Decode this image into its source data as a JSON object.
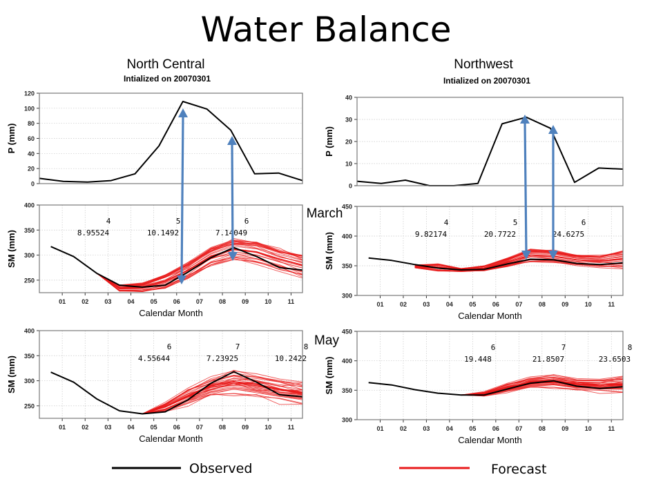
{
  "title": "Water Balance",
  "colors": {
    "observed": "#000000",
    "forecast": "#e8191a",
    "arrow": "#4f81bd",
    "frame": "#777777"
  },
  "left_column": {
    "region": "North Central",
    "init": "Intialized on 20070301"
  },
  "right_column": {
    "region": "Northwest",
    "init": "Intialized on 20070301"
  },
  "row_labels": {
    "march": "March",
    "may": "May"
  },
  "legend": {
    "observed": "Observed",
    "forecast": "Forecast"
  },
  "chart_data": [
    {
      "id": "nc-precip",
      "type": "line",
      "ylabel": "P (mm)",
      "ylim": [
        0,
        120
      ],
      "yticks": [
        0,
        20,
        40,
        60,
        80,
        100,
        120
      ],
      "x": [
        0,
        1,
        2,
        3,
        4,
        5,
        6,
        7,
        8,
        9,
        10,
        11
      ],
      "series": [
        {
          "kind": "observed",
          "values": [
            7,
            3,
            2,
            4,
            13,
            50,
            109,
            99,
            71,
            13,
            14,
            4
          ]
        }
      ]
    },
    {
      "id": "nw-precip",
      "type": "line",
      "ylabel": "P (mm)",
      "ylim": [
        0,
        40
      ],
      "yticks": [
        0,
        10,
        20,
        30,
        40
      ],
      "x": [
        0,
        1,
        2,
        3,
        4,
        5,
        6,
        7,
        8,
        9,
        10,
        11
      ],
      "series": [
        {
          "kind": "observed",
          "values": [
            2,
            1,
            2.5,
            0,
            0,
            1,
            28,
            31,
            26,
            1.5,
            8,
            7.5
          ]
        }
      ]
    },
    {
      "id": "nc-sm-march",
      "type": "line",
      "ylabel": "SM (mm)",
      "xlabel": "Calendar Month",
      "ylim": [
        225,
        400
      ],
      "yticks": [
        250,
        300,
        350,
        400
      ],
      "x_ticklabels": [
        "01",
        "02",
        "03",
        "04",
        "05",
        "06",
        "07",
        "08",
        "09",
        "10",
        "11"
      ],
      "observed": {
        "x": [
          0.5,
          1.5,
          2.5,
          3.5,
          4.5,
          5.5,
          6.5,
          7.5,
          8.5,
          9.5,
          10.5,
          11.5
        ],
        "values": [
          317,
          297,
          264,
          240,
          236,
          240,
          266,
          295,
          315,
          297,
          275,
          270
        ]
      },
      "forecast": {
        "start_x": 2.5,
        "start_value": 264,
        "members": 30,
        "x": [
          2.5,
          3.5,
          4.5,
          5.5,
          6.5,
          7.5,
          8.5,
          9.5,
          10.5,
          11.5
        ],
        "mean": [
          264,
          234,
          236,
          248,
          270,
          298,
          312,
          306,
          292,
          280
        ],
        "spread": [
          0,
          7,
          10,
          16,
          20,
          22,
          24,
          25,
          24,
          24
        ]
      },
      "annotations": [
        {
          "month": "4",
          "value": "8.95524"
        },
        {
          "month": "5",
          "value": "10.1492"
        },
        {
          "month": "6",
          "value": "7.14049"
        }
      ]
    },
    {
      "id": "nw-sm-march",
      "type": "line",
      "ylabel": "SM (mm)",
      "xlabel": "Calendar Month",
      "ylim": [
        300,
        450
      ],
      "yticks": [
        300,
        350,
        400,
        450
      ],
      "x_ticklabels": [
        "01",
        "02",
        "03",
        "04",
        "05",
        "06",
        "07",
        "08",
        "09",
        "10",
        "11"
      ],
      "observed": {
        "x": [
          0.5,
          1.5,
          2.5,
          3.5,
          4.5,
          5.5,
          6.5,
          7.5,
          8.5,
          9.5,
          10.5,
          11.5
        ],
        "values": [
          363,
          359,
          352,
          346,
          343,
          344,
          353,
          361,
          360,
          354,
          352,
          355
        ]
      },
      "forecast": {
        "start_x": 2.5,
        "start_value": 350,
        "members": 30,
        "x": [
          2.5,
          3.5,
          4.5,
          5.5,
          6.5,
          7.5,
          8.5,
          9.5,
          10.5,
          11.5
        ],
        "mean": [
          349,
          347,
          343,
          346,
          356,
          368,
          366,
          360,
          358,
          362
        ],
        "spread": [
          3,
          7,
          3,
          5,
          9,
          13,
          12,
          10,
          11,
          16
        ]
      },
      "annotations": [
        {
          "month": "4",
          "value": "9.82174"
        },
        {
          "month": "5",
          "value": "20.7722"
        },
        {
          "month": "6",
          "value": "24.6275"
        }
      ]
    },
    {
      "id": "nc-sm-may",
      "type": "line",
      "ylabel": "SM (mm)",
      "xlabel": "Calendar Month",
      "ylim": [
        225,
        400
      ],
      "yticks": [
        250,
        300,
        350,
        400
      ],
      "x_ticklabels": [
        "01",
        "02",
        "03",
        "04",
        "05",
        "06",
        "07",
        "08",
        "09",
        "10",
        "11"
      ],
      "observed": {
        "x": [
          0.5,
          1.5,
          2.5,
          3.5,
          4.5,
          5.5,
          6.5,
          7.5,
          8.5,
          9.5,
          10.5,
          11.5
        ],
        "values": [
          317,
          297,
          264,
          240,
          234,
          238,
          262,
          295,
          318,
          297,
          272,
          268
        ]
      },
      "forecast": {
        "start_x": 4.5,
        "start_value": 234,
        "members": 30,
        "x": [
          4.5,
          5.5,
          6.5,
          7.5,
          8.5,
          9.5,
          10.5,
          11.5
        ],
        "mean": [
          234,
          248,
          270,
          290,
          298,
          293,
          283,
          277
        ],
        "spread": [
          0,
          12,
          20,
          25,
          28,
          28,
          27,
          27
        ]
      },
      "annotations": [
        {
          "month": "6",
          "value": "4.55644"
        },
        {
          "month": "7",
          "value": "7.23925"
        },
        {
          "month": "8",
          "value": "10.2422"
        }
      ]
    },
    {
      "id": "nw-sm-may",
      "type": "line",
      "ylabel": "SM (mm)",
      "xlabel": "Calendar Month",
      "ylim": [
        300,
        450
      ],
      "yticks": [
        300,
        350,
        400,
        450
      ],
      "x_ticklabels": [
        "01",
        "02",
        "03",
        "04",
        "05",
        "06",
        "07",
        "08",
        "09",
        "10",
        "11"
      ],
      "observed": {
        "x": [
          0.5,
          1.5,
          2.5,
          3.5,
          4.5,
          5.5,
          6.5,
          7.5,
          8.5,
          9.5,
          10.5,
          11.5
        ],
        "values": [
          363,
          359,
          351,
          345,
          342,
          342,
          352,
          362,
          366,
          357,
          353,
          356
        ]
      },
      "forecast": {
        "start_x": 4.5,
        "start_value": 342,
        "members": 30,
        "x": [
          4.5,
          5.5,
          6.5,
          7.5,
          8.5,
          9.5,
          10.5,
          11.5
        ],
        "mean": [
          342,
          344,
          355,
          364,
          366,
          361,
          359,
          361
        ],
        "spread": [
          0,
          5,
          9,
          12,
          13,
          12,
          13,
          17
        ]
      },
      "annotations": [
        {
          "month": "6",
          "value": "19.448"
        },
        {
          "month": "7",
          "value": "21.8507"
        },
        {
          "month": "8",
          "value": "23.6503"
        }
      ]
    }
  ]
}
